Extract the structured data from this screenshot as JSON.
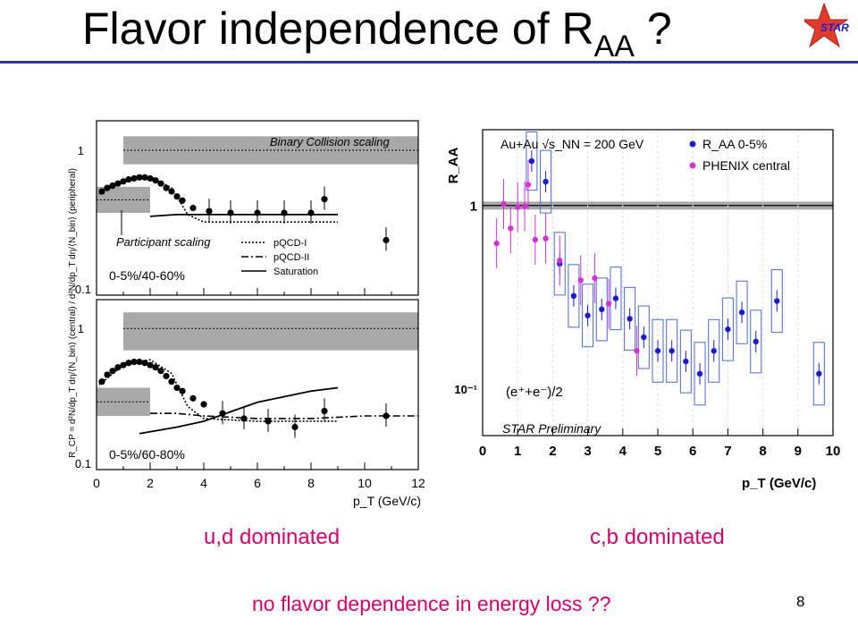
{
  "slide": {
    "title_main": "Flavor independence of R",
    "title_sub": "AA",
    "title_tail": " ?",
    "logo_text": "STAR",
    "caption_left": "u,d dominated",
    "caption_right": "c,b dominated",
    "footnote": "no flavor dependence in energy loss ??",
    "page_number": "8"
  },
  "colors": {
    "accent": "#d6006f",
    "title_rule": "#2b3a8f",
    "star_blue": "#1a1ad0",
    "phenix_magenta": "#d631d6",
    "band_gray": "#a8a8a8"
  },
  "chart_data": [
    {
      "type": "scatter",
      "id": "left-top",
      "yscale": "log",
      "ylim": [
        0.1,
        1.6
      ],
      "xlim": [
        0,
        12
      ],
      "ylabel": "R_CP = d²N/dp_T dη/⟨N_bin⟩ (central) / d²N/dp_T dη/⟨N_bin⟩ (peripheral)",
      "xlabel": "",
      "yticks": [
        "1",
        "0.1"
      ],
      "annotations": [
        "Binary Collision scaling",
        "Participant scaling",
        "0-5%/40-60%"
      ],
      "legend": [
        "pQCD-I",
        "pQCD-II",
        "Saturation"
      ],
      "legend_placement": "bottom-right",
      "series": [
        {
          "x": [
            0.2,
            0.4,
            0.6,
            0.8,
            1.0,
            1.2,
            1.4,
            1.6,
            1.8,
            2.0,
            2.2,
            2.4,
            2.6,
            2.8,
            3.0,
            3.2,
            3.6,
            4.2,
            5.0,
            6.0,
            7.0,
            8.0,
            8.5,
            10.8
          ],
          "y": [
            0.52,
            0.55,
            0.57,
            0.59,
            0.61,
            0.63,
            0.64,
            0.65,
            0.65,
            0.64,
            0.62,
            0.59,
            0.55,
            0.52,
            0.48,
            0.45,
            0.4,
            0.38,
            0.37,
            0.37,
            0.37,
            0.37,
            0.46,
            0.24
          ]
        }
      ],
      "bands": [
        {
          "name": "Binary Collision scaling",
          "x": [
            1,
            12
          ],
          "y": [
            0.8,
            1.25
          ]
        },
        {
          "name": "Participant scaling",
          "x": [
            0,
            2
          ],
          "y": [
            0.37,
            0.56
          ]
        }
      ],
      "curves": [
        {
          "name": "pQCD-I",
          "style": "dotted",
          "x": [
            0.1,
            1,
            2,
            2.8,
            3.4,
            4,
            6,
            9
          ],
          "y": [
            0.5,
            0.62,
            0.66,
            0.55,
            0.36,
            0.32,
            0.32,
            0.32
          ]
        },
        {
          "name": "Saturation",
          "style": "solid",
          "x": [
            2,
            3,
            5,
            8,
            9
          ],
          "y": [
            0.35,
            0.36,
            0.36,
            0.36,
            0.36
          ]
        }
      ]
    },
    {
      "type": "scatter",
      "id": "left-bottom",
      "yscale": "log",
      "ylim": [
        0.1,
        1.6
      ],
      "xlim": [
        0,
        12
      ],
      "xlabel": "p_T (GeV/c)",
      "xticks": [
        "0",
        "2",
        "4",
        "6",
        "8",
        "10",
        "12"
      ],
      "yticks": [
        "1",
        "0.1"
      ],
      "annotations": [
        "0-5%/60-80%"
      ],
      "series": [
        {
          "x": [
            0.2,
            0.4,
            0.6,
            0.8,
            1.0,
            1.2,
            1.4,
            1.6,
            1.8,
            2.0,
            2.2,
            2.4,
            2.6,
            2.8,
            3.0,
            3.2,
            3.6,
            4.0,
            4.7,
            5.5,
            6.4,
            7.4,
            8.5,
            10.8
          ],
          "y": [
            0.42,
            0.47,
            0.5,
            0.53,
            0.55,
            0.57,
            0.58,
            0.58,
            0.57,
            0.55,
            0.53,
            0.5,
            0.46,
            0.42,
            0.38,
            0.36,
            0.32,
            0.29,
            0.25,
            0.23,
            0.22,
            0.2,
            0.26,
            0.24
          ]
        }
      ],
      "bands": [
        {
          "name": "Binary Collision scaling",
          "x": [
            1,
            12
          ],
          "y": [
            0.7,
            1.3
          ]
        },
        {
          "name": "Participant scaling",
          "x": [
            0,
            2
          ],
          "y": [
            0.24,
            0.38
          ]
        }
      ],
      "curves": [
        {
          "name": "pQCD-I",
          "style": "dotted",
          "x": [
            0.1,
            1,
            2,
            2.8,
            3.4,
            4,
            6,
            9
          ],
          "y": [
            0.4,
            0.55,
            0.6,
            0.48,
            0.28,
            0.23,
            0.22,
            0.22
          ]
        },
        {
          "name": "pQCD-II",
          "style": "dashdot",
          "x": [
            2,
            3,
            4,
            6,
            8,
            10,
            12
          ],
          "y": [
            0.25,
            0.25,
            0.24,
            0.23,
            0.23,
            0.24,
            0.24
          ]
        },
        {
          "name": "Saturation",
          "style": "solid",
          "x": [
            1.6,
            3,
            4,
            6,
            8,
            9
          ],
          "y": [
            0.18,
            0.2,
            0.22,
            0.3,
            0.36,
            0.38
          ]
        }
      ]
    },
    {
      "type": "scatter",
      "id": "right",
      "yscale": "log",
      "ylim": [
        0.055,
        2.6
      ],
      "xlim": [
        0,
        10
      ],
      "ylabel": "R_AA",
      "xlabel": "p_T (GeV/c)",
      "xticks": [
        "0",
        "1",
        "2",
        "3",
        "4",
        "5",
        "6",
        "7",
        "8",
        "9",
        "10"
      ],
      "yticks": [
        "1",
        "10⁻¹"
      ],
      "annotations": [
        "Au+Au √s_NN = 200 GeV",
        "(e⁺+e⁻)/2",
        "STAR Preliminary"
      ],
      "legend_placement": "top-right",
      "series": [
        {
          "name": "R_AA 0-5%",
          "color": "#1a1ad0",
          "x": [
            1.4,
            1.8,
            2.2,
            2.6,
            3.0,
            3.4,
            3.8,
            4.2,
            4.6,
            5.0,
            5.4,
            5.8,
            6.2,
            6.6,
            7.0,
            7.4,
            7.8,
            8.4,
            9.6
          ],
          "y": [
            1.75,
            1.35,
            0.48,
            0.32,
            0.25,
            0.27,
            0.31,
            0.24,
            0.19,
            0.16,
            0.16,
            0.14,
            0.12,
            0.16,
            0.21,
            0.26,
            0.18,
            0.3,
            0.12
          ]
        },
        {
          "name": "PHENIX central",
          "color": "#d631d6",
          "x": [
            0.4,
            0.6,
            0.8,
            1.0,
            1.2,
            1.3,
            1.5,
            1.8,
            2.2,
            2.8,
            3.2,
            3.6,
            4.4
          ],
          "y": [
            0.62,
            1.02,
            0.75,
            0.98,
            0.99,
            1.3,
            0.65,
            0.66,
            0.5,
            0.39,
            0.4,
            0.29,
            0.16
          ]
        }
      ],
      "band_at_one": true
    }
  ]
}
